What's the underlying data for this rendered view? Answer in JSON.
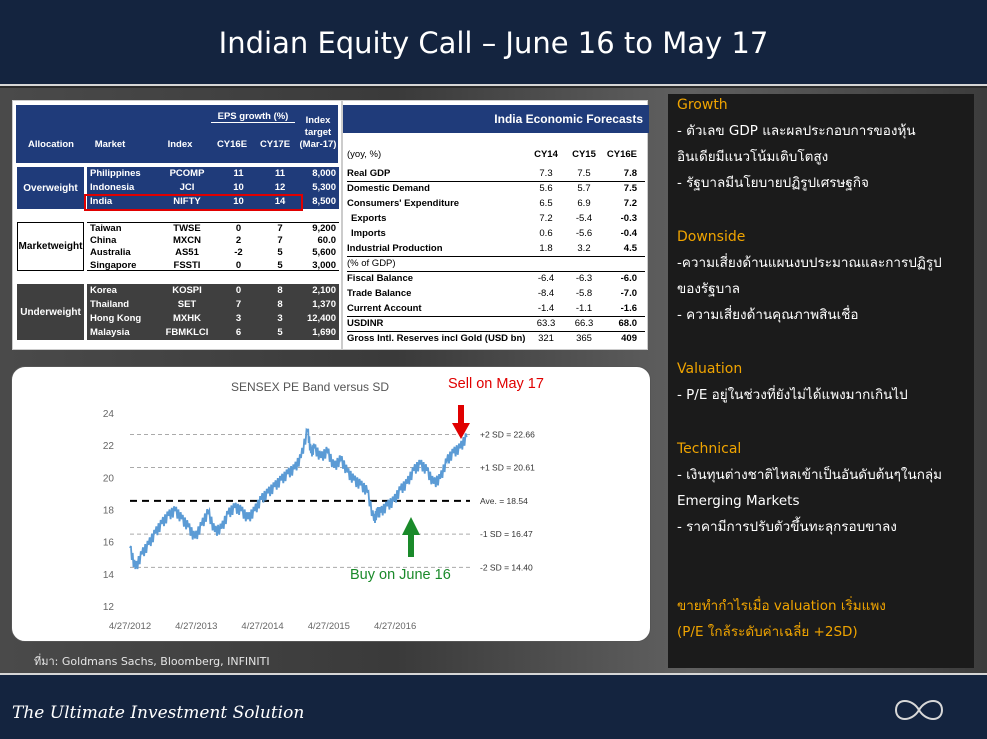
{
  "header": {
    "title": "Indian Equity Call – June 16 to May 17"
  },
  "footer": {
    "tagline": "The Ultimate Investment Solution",
    "logo_icon": "infinity-icon"
  },
  "source": "ที่มา: Goldmans Sachs, Bloomberg, INFINITI",
  "allocation_table": {
    "headers": {
      "allocation": "Allocation",
      "market": "Market",
      "index": "Index",
      "eps_group": "EPS growth (%)",
      "cy16e": "CY16E",
      "cy17e": "CY17E",
      "target": "Index target (Mar-17)"
    },
    "groups": [
      {
        "label": "Overweight",
        "rows": [
          [
            "Philippines",
            "PCOMP",
            "11",
            "11",
            "8,000"
          ],
          [
            "Indonesia",
            "JCI",
            "10",
            "12",
            "5,300"
          ],
          [
            "India",
            "NIFTY",
            "10",
            "14",
            "8,500"
          ]
        ]
      },
      {
        "label": "Marketweight",
        "rows": [
          [
            "Taiwan",
            "TWSE",
            "0",
            "7",
            "9,200"
          ],
          [
            "China",
            "MXCN",
            "2",
            "7",
            "60.0"
          ],
          [
            "Australia",
            "AS51",
            "-2",
            "5",
            "5,600"
          ],
          [
            "Singapore",
            "FSSTI",
            "0",
            "5",
            "3,000"
          ]
        ]
      },
      {
        "label": "Underweight",
        "rows": [
          [
            "Korea",
            "KOSPI",
            "0",
            "8",
            "2,100"
          ],
          [
            "Thailand",
            "SET",
            "7",
            "8",
            "1,370"
          ],
          [
            "Hong Kong",
            "MXHK",
            "3",
            "3",
            "12,400"
          ],
          [
            "Malaysia",
            "FBMKLCI",
            "6",
            "5",
            "1,690"
          ]
        ]
      }
    ],
    "highlight_color": "#e00000"
  },
  "forecast_table": {
    "title": "India Economic Forecasts",
    "unit": "(yoy, %)",
    "cols": [
      "CY14",
      "CY15",
      "CY16E"
    ],
    "rows": [
      [
        "Real GDP",
        "7.3",
        "7.5",
        "7.8"
      ],
      [
        "Domestic Demand",
        "5.6",
        "5.7",
        "7.5"
      ],
      [
        "Consumers' Expenditure",
        "6.5",
        "6.9",
        "7.2"
      ],
      [
        " Exports",
        "7.2",
        "-5.4",
        "-0.3"
      ],
      [
        " Imports",
        "0.6",
        "-5.6",
        "-0.4"
      ],
      [
        "Industrial Production",
        "1.8",
        "3.2",
        "4.5"
      ],
      [
        "(% of GDP)",
        "",
        "",
        ""
      ],
      [
        "Fiscal Balance",
        "-6.4",
        "-6.3",
        "-6.0"
      ],
      [
        "Trade Balance",
        "-8.4",
        "-5.8",
        "-7.0"
      ],
      [
        "Current Account",
        "-1.4",
        "-1.1",
        "-1.6"
      ],
      [
        "USDINR",
        "63.3",
        "66.3",
        "68.0"
      ],
      [
        "Gross Intl. Reserves incl Gold (USD bn)",
        "321",
        "365",
        "409"
      ]
    ]
  },
  "chart_data": {
    "type": "line",
    "title": "SENSEX PE Band versus SD",
    "x_ticks": [
      "4/27/2012",
      "4/27/2013",
      "4/27/2014",
      "4/27/2015",
      "4/27/2016"
    ],
    "y_ticks": [
      "12",
      "14",
      "16",
      "18",
      "20",
      "22",
      "24"
    ],
    "ylim": [
      12,
      24
    ],
    "x_range": [
      2012.32,
      2017.45
    ],
    "bands": [
      {
        "label": "+2 SD = 22.66",
        "value": 22.66
      },
      {
        "label": "+1 SD = 20.61",
        "value": 20.61
      },
      {
        "label": "Ave. = 18.54",
        "value": 18.54
      },
      {
        "label": "-1 SD = 16.47",
        "value": 16.47
      },
      {
        "label": "-2 SD = 14.40",
        "value": 14.4
      }
    ],
    "series": [
      {
        "x": [
          2012.32,
          2012.4,
          2012.5,
          2012.6,
          2012.7,
          2012.8,
          2012.9,
          2013.0,
          2013.1,
          2013.2,
          2013.3,
          2013.4,
          2013.5,
          2013.6,
          2013.7,
          2013.8,
          2013.9,
          2014.0,
          2014.1,
          2014.2,
          2014.3,
          2014.4,
          2014.5,
          2014.6,
          2014.7,
          2014.8,
          2014.9,
          2015.0,
          2015.05,
          2015.1,
          2015.2,
          2015.3,
          2015.4,
          2015.5,
          2015.6,
          2015.7,
          2015.8,
          2015.9,
          2016.0,
          2016.05,
          2016.1,
          2016.2,
          2016.3,
          2016.4,
          2016.5,
          2016.6,
          2016.7,
          2016.8,
          2016.9,
          2017.0,
          2017.1,
          2017.2,
          2017.3,
          2017.4
        ],
        "values": [
          15.6,
          14.3,
          15.2,
          15.8,
          16.5,
          17.1,
          17.6,
          17.9,
          17.4,
          16.9,
          16.2,
          17.0,
          17.8,
          16.6,
          16.8,
          17.7,
          18.1,
          17.9,
          17.4,
          17.9,
          18.6,
          19.0,
          19.4,
          19.8,
          20.2,
          20.5,
          21.2,
          22.9,
          21.5,
          21.8,
          21.2,
          21.6,
          20.6,
          21.1,
          20.3,
          19.8,
          19.5,
          19.1,
          17.3,
          17.8,
          17.8,
          18.2,
          18.5,
          19.2,
          19.6,
          20.4,
          20.8,
          20.4,
          19.6,
          19.9,
          21.0,
          21.5,
          21.8,
          22.5
        ]
      }
    ],
    "annotations": {
      "sell": "Sell on May 17",
      "buy": "Buy on June 16"
    },
    "sell_color": "#e00000",
    "buy_color": "#1a8a2a",
    "line_color": "#5b9bd5"
  },
  "right_panel": {
    "sections": [
      {
        "heading": "Growth",
        "lines": [
          "- ตัวเลข GDP และผลประกอบการของหุ้น",
          "อินเดียมีแนวโน้มเติบโตสูง",
          "- รัฐบาลมีนโยบายปฏิรูปเศรษฐกิจ"
        ]
      },
      {
        "heading": "Downside",
        "lines": [
          "-ความเสี่ยงด้านแผนงบประมาณและการปฏิรูป",
          "ของรัฐบาล",
          "- ความเสี่ยงด้านคุณภาพสินเชื่อ"
        ]
      },
      {
        "heading": "Valuation",
        "lines": [
          "- P/E อยู่ในช่วงที่ยังไม่ได้แพงมากเกินไป"
        ]
      },
      {
        "heading": "Technical",
        "lines": [
          "- เงินทุนต่างชาติไหลเข้าเป็นอันดับต้นๆในกลุ่ม",
          "Emerging Markets",
          "- ราคามีการปรับตัวขึ้นทะลุกรอบขาลง"
        ]
      }
    ],
    "conclusion": [
      "ขายทำกำไรเมื่อ valuation เริ่มแพง",
      "(P/E ใกล้ระดับค่าเฉลี่ย +2SD)"
    ],
    "accent_color": "#f0a400"
  }
}
